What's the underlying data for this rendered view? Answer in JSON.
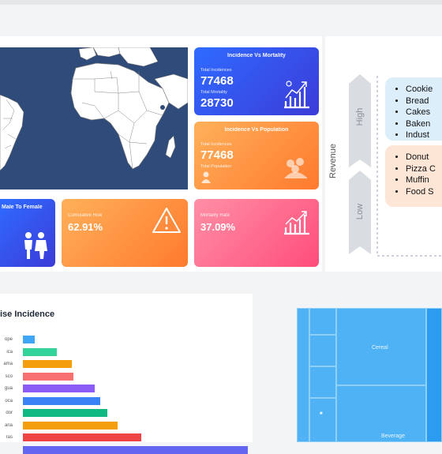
{
  "cards": {
    "incidence_vs_mortality": {
      "title": "Incidence Vs Mortality",
      "label1": "Total Incidences",
      "value1": "77468",
      "label2": "Total Mortality",
      "value2": "28730"
    },
    "incidence_vs_population": {
      "title": "Incidence Vs Population",
      "label1": "Total Incidences",
      "value1": "77468",
      "label2": "Total Population"
    },
    "male_to_female": {
      "title": "Male To Female"
    },
    "cumulative_risk": {
      "title": "Cumulative Risk",
      "value": "62.91%"
    },
    "mortality_rate": {
      "title": "Mortality Rate",
      "value": "37.09%"
    }
  },
  "quadrant": {
    "axis_label": "Revenue",
    "high_label": "High",
    "low_label": "Low",
    "high_items": [
      "Cookie",
      "Bread",
      "Cakes",
      "Baken",
      "Indust"
    ],
    "low_items": [
      "Donut",
      "Pizza C",
      "Muffin",
      "Food S"
    ]
  },
  "bottom_chart": {
    "title": "ise Incidence"
  },
  "chart_data": {
    "type": "bar",
    "title": "ise Incidence",
    "categories": [
      "ope",
      "ica",
      "ama",
      "sco",
      "gua",
      "oca",
      "dor",
      "ana",
      "ras",
      ""
    ],
    "values": [
      15,
      43,
      62,
      64,
      91,
      98,
      107,
      120,
      150,
      285
    ],
    "colors": [
      "#3fa6f5",
      "#34d399",
      "#f59e0b",
      "#f87171",
      "#8b5cf6",
      "#3b82f6",
      "#10b981",
      "#f59e0b",
      "#ef4444",
      "#6366f1"
    ]
  },
  "treemap": {
    "large_label": "Cereal",
    "small_label": "Beverage",
    "small_marker": "■"
  }
}
